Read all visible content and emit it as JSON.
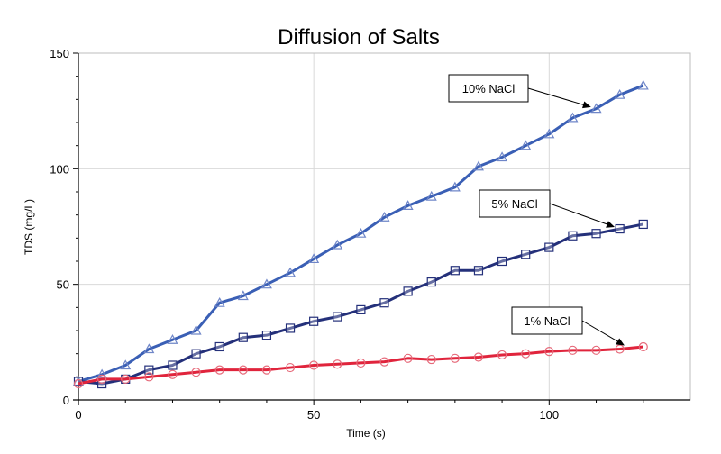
{
  "chart_data": {
    "type": "line",
    "title": "Diffusion of Salts",
    "xlabel": "Time (s)",
    "ylabel": "TDS (mg/L)",
    "xlim": [
      0,
      130
    ],
    "ylim": [
      0,
      150
    ],
    "x_ticks": [
      0,
      50,
      100
    ],
    "y_ticks": [
      0,
      50,
      100,
      150
    ],
    "grid": true,
    "x": [
      0,
      5,
      10,
      15,
      20,
      25,
      30,
      35,
      40,
      45,
      50,
      55,
      60,
      65,
      70,
      75,
      80,
      85,
      90,
      95,
      100,
      105,
      110,
      115,
      120
    ],
    "series": [
      {
        "name": "10% NaCl",
        "color": "#3a5fb5",
        "marker": "triangle",
        "values": [
          8,
          11,
          15,
          22,
          26,
          30,
          42,
          45,
          50,
          55,
          61,
          67,
          72,
          79,
          84,
          88,
          92,
          101,
          105,
          110,
          115,
          122,
          126,
          132,
          136
        ]
      },
      {
        "name": "5% NaCl",
        "color": "#24307a",
        "marker": "square",
        "values": [
          8,
          7,
          9,
          13,
          15,
          20,
          23,
          27,
          28,
          31,
          34,
          36,
          39,
          42,
          47,
          51,
          56,
          56,
          60,
          63,
          66,
          71,
          72,
          74,
          76
        ]
      },
      {
        "name": "1% NaCl",
        "color": "#e0243c",
        "marker": "circle",
        "values": [
          7,
          9,
          9,
          10,
          11,
          12,
          13,
          13,
          13,
          14,
          15,
          15.5,
          16,
          16.5,
          18,
          17.5,
          18,
          18.5,
          19.5,
          20,
          21,
          21.5,
          21.5,
          22,
          23
        ]
      }
    ],
    "annotations": [
      {
        "label": "10% NaCl",
        "target_series": 0,
        "target_x": 110
      },
      {
        "label": "5% NaCl",
        "target_series": 1,
        "target_x": 115
      },
      {
        "label": "1% NaCl",
        "target_series": 2,
        "target_x": 117
      }
    ]
  }
}
